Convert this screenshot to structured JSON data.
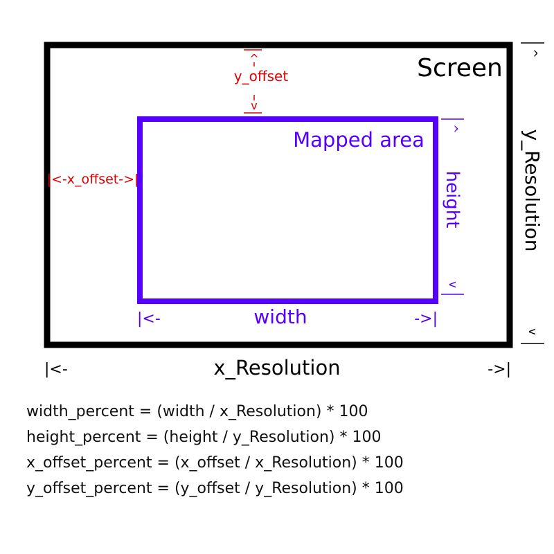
{
  "colors": {
    "screen": "#000000",
    "mapped": "#5500ff",
    "offset": "#dd0000",
    "text": "#111111"
  },
  "labels": {
    "screen": "Screen",
    "mapped_area": "Mapped area",
    "x_resolution": "x_Resolution",
    "y_resolution": "y_Resolution",
    "width": "width",
    "height": "height",
    "x_offset": "|<-x_offset->|",
    "y_offset": "y_offset"
  },
  "arrows": {
    "left": "|<-",
    "right": "->|",
    "up": "^",
    "down": "v"
  },
  "formulas": [
    "width_percent = (width / x_Resolution) * 100",
    "height_percent = (height / y_Resolution) * 100",
    "x_offset_percent = (x_offset / x_Resolution) * 100",
    "y_offset_percent = (y_offset / y_Resolution) * 100"
  ]
}
